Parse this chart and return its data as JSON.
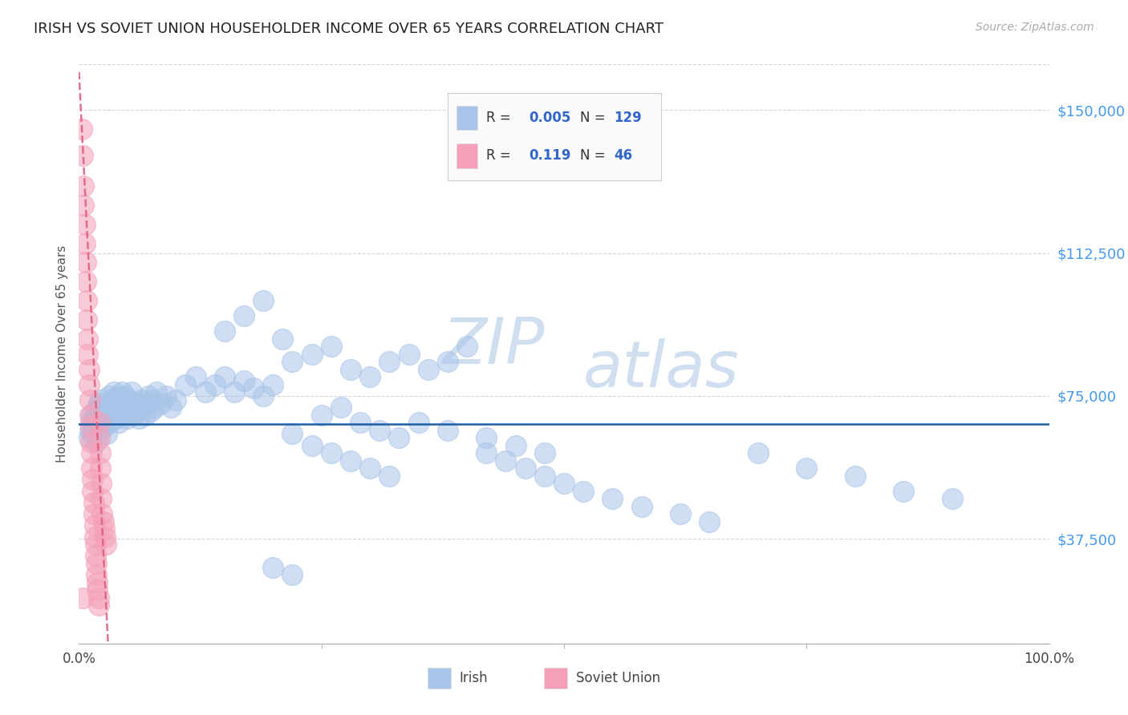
{
  "title": "IRISH VS SOVIET UNION HOUSEHOLDER INCOME OVER 65 YEARS CORRELATION CHART",
  "source": "Source: ZipAtlas.com",
  "ylabel": "Householder Income Over 65 years",
  "xlim": [
    0,
    100
  ],
  "ylim": [
    10000,
    162000
  ],
  "yticks": [
    37500,
    75000,
    112500,
    150000
  ],
  "ytick_labels": [
    "$37,500",
    "$75,000",
    "$112,500",
    "$150,000"
  ],
  "irish_color": "#a8c4e8",
  "soviet_color": "#f4a0b8",
  "irish_line_color": "#1a5fa8",
  "soviet_line_color": "#e06080",
  "regression_line_y": 67500,
  "title_color": "#222222",
  "axis_label_color": "#555555",
  "ytick_color": "#4499ee",
  "legend_text_color": "#3366cc",
  "watermark_color": "#d0dff0",
  "background_color": "#ffffff",
  "grid_color": "#cccccc",
  "irish_scatter_x": [
    1.0,
    1.1,
    1.2,
    1.3,
    1.4,
    1.5,
    1.6,
    1.7,
    1.8,
    1.9,
    2.0,
    2.1,
    2.2,
    2.3,
    2.4,
    2.5,
    2.6,
    2.7,
    2.8,
    2.9,
    3.0,
    3.1,
    3.2,
    3.3,
    3.4,
    3.5,
    3.6,
    3.7,
    3.8,
    3.9,
    4.0,
    4.1,
    4.2,
    4.3,
    4.4,
    4.5,
    4.6,
    4.7,
    4.8,
    4.9,
    5.0,
    5.2,
    5.4,
    5.6,
    5.8,
    6.0,
    6.2,
    6.4,
    6.6,
    6.8,
    7.0,
    7.2,
    7.4,
    7.6,
    7.8,
    8.0,
    8.5,
    9.0,
    9.5,
    10.0,
    11.0,
    12.0,
    13.0,
    14.0,
    15.0,
    16.0,
    17.0,
    18.0,
    19.0,
    20.0,
    22.0,
    24.0,
    26.0,
    28.0,
    30.0,
    32.0,
    34.0,
    36.0,
    38.0,
    40.0,
    22.0,
    24.0,
    26.0,
    28.0,
    30.0,
    32.0,
    15.0,
    17.0,
    19.0,
    21.0,
    42.0,
    44.0,
    46.0,
    48.0,
    50.0,
    52.0,
    55.0,
    58.0,
    62.0,
    65.0,
    70.0,
    75.0,
    80.0,
    85.0,
    90.0,
    35.0,
    38.0,
    42.0,
    45.0,
    48.0,
    25.0,
    27.0,
    29.0,
    31.0,
    33.0,
    20.0,
    22.0
  ],
  "irish_scatter_y": [
    64000,
    66000,
    68000,
    70000,
    65000,
    67000,
    69000,
    71000,
    63000,
    72000,
    73000,
    68000,
    66000,
    74000,
    70000,
    72000,
    67000,
    69000,
    71000,
    65000,
    73000,
    75000,
    68000,
    70000,
    72000,
    74000,
    76000,
    69000,
    71000,
    73000,
    75000,
    68000,
    72000,
    74000,
    76000,
    70000,
    73000,
    71000,
    75000,
    69000,
    72000,
    74000,
    76000,
    70000,
    73000,
    71000,
    69000,
    74000,
    72000,
    70000,
    73000,
    75000,
    71000,
    74000,
    72000,
    76000,
    73000,
    75000,
    72000,
    74000,
    78000,
    80000,
    76000,
    78000,
    80000,
    76000,
    79000,
    77000,
    75000,
    78000,
    84000,
    86000,
    88000,
    82000,
    80000,
    84000,
    86000,
    82000,
    84000,
    88000,
    65000,
    62000,
    60000,
    58000,
    56000,
    54000,
    92000,
    96000,
    100000,
    90000,
    60000,
    58000,
    56000,
    54000,
    52000,
    50000,
    48000,
    46000,
    44000,
    42000,
    60000,
    56000,
    54000,
    50000,
    48000,
    68000,
    66000,
    64000,
    62000,
    60000,
    70000,
    72000,
    68000,
    66000,
    64000,
    30000,
    28000
  ],
  "soviet_scatter_x": [
    0.3,
    0.4,
    0.5,
    0.5,
    0.6,
    0.6,
    0.7,
    0.7,
    0.8,
    0.8,
    0.9,
    0.9,
    1.0,
    1.0,
    1.1,
    1.1,
    1.2,
    1.2,
    1.3,
    1.3,
    1.4,
    1.4,
    1.5,
    1.5,
    1.6,
    1.6,
    1.7,
    1.7,
    1.8,
    1.8,
    1.9,
    1.9,
    2.0,
    2.0,
    2.1,
    2.1,
    2.2,
    2.2,
    2.3,
    2.3,
    2.4,
    2.5,
    2.6,
    2.7,
    2.8,
    0.4
  ],
  "soviet_scatter_y": [
    145000,
    138000,
    130000,
    125000,
    120000,
    115000,
    110000,
    105000,
    100000,
    95000,
    90000,
    86000,
    82000,
    78000,
    74000,
    70000,
    67000,
    63000,
    60000,
    56000,
    53000,
    50000,
    47000,
    44000,
    41000,
    38000,
    36000,
    33000,
    31000,
    28000,
    26000,
    24000,
    22000,
    20000,
    68000,
    64000,
    60000,
    56000,
    52000,
    48000,
    44000,
    42000,
    40000,
    38000,
    36000,
    22000
  ]
}
